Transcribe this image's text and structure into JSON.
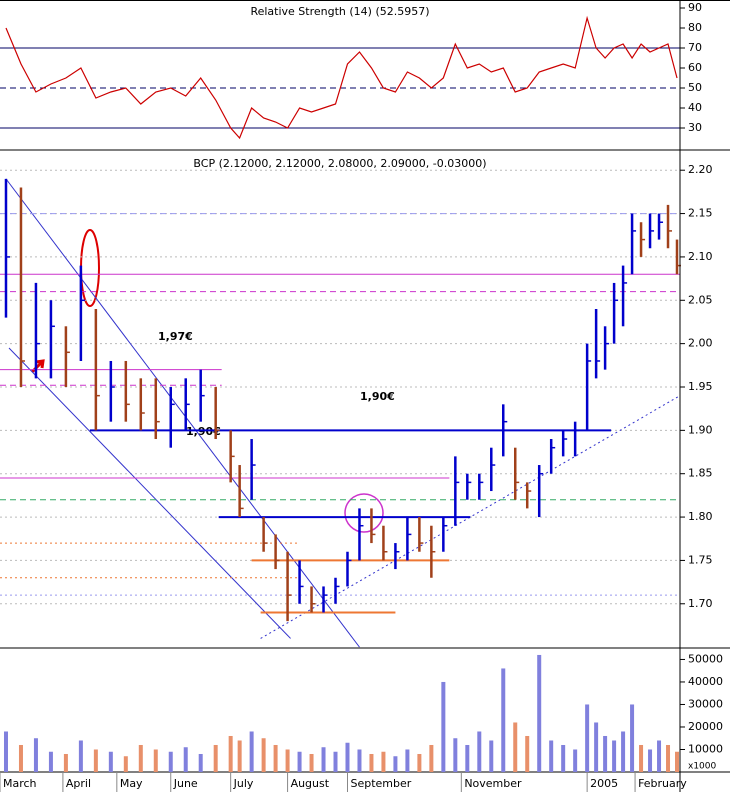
{
  "chart_data": [
    {
      "type": "line",
      "title": "Relative Strength (14) (52.5957)",
      "color": "#cc0000",
      "xlim": [
        0,
        227
      ],
      "ylim": [
        19,
        94
      ],
      "yticks": [
        30,
        40,
        50,
        60,
        70,
        80,
        90
      ],
      "reference_lines": [
        {
          "value": 70,
          "style": "solid"
        },
        {
          "value": 50,
          "style": "dashed"
        },
        {
          "value": 30,
          "style": "solid"
        }
      ],
      "x": [
        2,
        7,
        12,
        17,
        22,
        27,
        32,
        37,
        42,
        47,
        52,
        57,
        62,
        67,
        72,
        77,
        80,
        84,
        88,
        92,
        96,
        100,
        104,
        108,
        112,
        116,
        120,
        124,
        128,
        132,
        136,
        140,
        144,
        148,
        152,
        156,
        160,
        164,
        168,
        172,
        176,
        180,
        184,
        188,
        192,
        196,
        199,
        202,
        205,
        208,
        211,
        214,
        217,
        220,
        223,
        226
      ],
      "values": [
        80,
        62,
        48,
        52,
        55,
        60,
        45,
        48,
        50,
        42,
        48,
        50,
        46,
        55,
        44,
        30,
        25,
        40,
        35,
        33,
        30,
        40,
        38,
        40,
        42,
        62,
        68,
        60,
        50,
        48,
        58,
        55,
        50,
        55,
        72,
        60,
        62,
        58,
        60,
        48,
        50,
        58,
        60,
        62,
        60,
        85,
        70,
        65,
        70,
        72,
        65,
        72,
        68,
        70,
        72,
        55
      ]
    },
    {
      "type": "ohlc",
      "title": "BCP (2.12000, 2.12000, 2.08000, 2.09000, -0.03000)",
      "up_color": "#0000cc",
      "down_color": "#a0401a",
      "grid": true,
      "xlim": [
        0,
        227
      ],
      "ylim": [
        1.649,
        2.221
      ],
      "yticks": [
        {
          "value": 1.7,
          "label": "1.70"
        },
        1.75,
        {
          "value": 1.8,
          "label": "1.80"
        },
        1.85,
        {
          "value": 1.9,
          "label": "1.90"
        },
        1.95,
        {
          "value": 2.0,
          "label": "2.00"
        },
        2.05,
        {
          "value": 2.1,
          "label": "2.10"
        },
        2.15,
        {
          "value": 2.2,
          "label": "2.20"
        }
      ],
      "x": [
        2,
        7,
        12,
        17,
        22,
        27,
        32,
        37,
        42,
        47,
        52,
        57,
        62,
        67,
        72,
        77,
        80,
        84,
        88,
        92,
        96,
        100,
        104,
        108,
        112,
        116,
        120,
        124,
        128,
        132,
        136,
        140,
        144,
        148,
        152,
        156,
        160,
        164,
        168,
        172,
        176,
        180,
        184,
        188,
        192,
        196,
        199,
        202,
        205,
        208,
        211,
        214,
        217,
        220,
        223,
        226
      ],
      "high": [
        2.19,
        2.18,
        2.07,
        2.05,
        2.02,
        2.09,
        2.04,
        1.98,
        1.98,
        1.96,
        1.96,
        1.95,
        1.96,
        1.97,
        1.95,
        1.9,
        1.86,
        1.89,
        1.8,
        1.78,
        1.76,
        1.75,
        1.72,
        1.72,
        1.73,
        1.76,
        1.81,
        1.81,
        1.79,
        1.77,
        1.8,
        1.8,
        1.79,
        1.8,
        1.87,
        1.85,
        1.85,
        1.88,
        1.93,
        1.88,
        1.84,
        1.86,
        1.89,
        1.9,
        1.91,
        2.0,
        2.04,
        2.02,
        2.07,
        2.09,
        2.15,
        2.14,
        2.15,
        2.15,
        2.16,
        2.12
      ],
      "low": [
        2.03,
        1.95,
        1.96,
        1.96,
        1.95,
        1.98,
        1.9,
        1.91,
        1.91,
        1.9,
        1.89,
        1.88,
        1.9,
        1.91,
        1.89,
        1.84,
        1.8,
        1.82,
        1.76,
        1.74,
        1.68,
        1.7,
        1.69,
        1.69,
        1.7,
        1.72,
        1.75,
        1.77,
        1.75,
        1.74,
        1.75,
        1.76,
        1.73,
        1.76,
        1.79,
        1.82,
        1.82,
        1.83,
        1.87,
        1.82,
        1.81,
        1.8,
        1.85,
        1.87,
        1.87,
        1.9,
        1.96,
        1.97,
        2.0,
        2.02,
        2.08,
        2.1,
        2.11,
        2.12,
        2.11,
        2.08
      ],
      "close": [
        2.1,
        1.98,
        2.0,
        2.02,
        1.99,
        2.05,
        1.94,
        1.95,
        1.93,
        1.92,
        1.91,
        1.93,
        1.93,
        1.94,
        1.9,
        1.87,
        1.81,
        1.86,
        1.77,
        1.75,
        1.71,
        1.72,
        1.7,
        1.71,
        1.72,
        1.75,
        1.79,
        1.78,
        1.76,
        1.76,
        1.78,
        1.77,
        1.76,
        1.79,
        1.84,
        1.84,
        1.84,
        1.86,
        1.91,
        1.84,
        1.83,
        1.85,
        1.88,
        1.89,
        1.9,
        1.98,
        1.98,
        2.0,
        2.05,
        2.07,
        2.13,
        2.12,
        2.13,
        2.14,
        2.13,
        2.09
      ],
      "lines": [
        {
          "x": [
            2,
            120
          ],
          "y": [
            2.19,
            1.65
          ],
          "color": "#3333cc",
          "style": "solid",
          "width": 1
        },
        {
          "x": [
            3,
            97
          ],
          "y": [
            1.995,
            1.66
          ],
          "color": "#3333cc",
          "style": "solid",
          "width": 1
        },
        {
          "x": [
            87,
            227
          ],
          "y": [
            1.66,
            1.94
          ],
          "color": "#3333cc",
          "style": "dotted",
          "width": 1
        },
        {
          "x": [
            0,
            227
          ],
          "y": [
            2.08,
            2.08
          ],
          "color": "#cc33cc",
          "style": "solid",
          "width": 1
        },
        {
          "x": [
            0,
            227
          ],
          "y": [
            2.06,
            2.06
          ],
          "color": "#cc33cc",
          "style": "dashed",
          "width": 1
        },
        {
          "x": [
            0,
            74
          ],
          "y": [
            1.97,
            1.97
          ],
          "color": "#cc33cc",
          "style": "solid",
          "width": 1
        },
        {
          "x": [
            0,
            74
          ],
          "y": [
            1.952,
            1.952
          ],
          "color": "#cc33cc",
          "style": "dashed",
          "width": 1
        },
        {
          "x": [
            0,
            150
          ],
          "y": [
            1.845,
            1.845
          ],
          "color": "#cc33cc",
          "style": "solid",
          "width": 1
        },
        {
          "x": [
            0,
            227
          ],
          "y": [
            2.15,
            2.15
          ],
          "color": "#9999ee",
          "style": "dashed",
          "width": 1
        },
        {
          "x": [
            0,
            227
          ],
          "y": [
            1.71,
            1.71
          ],
          "color": "#9999ee",
          "style": "dotted",
          "width": 1
        },
        {
          "x": [
            0,
            227
          ],
          "y": [
            1.82,
            1.82
          ],
          "color": "#33aa66",
          "style": "dashed",
          "width": 1
        },
        {
          "x": [
            0,
            100
          ],
          "y": [
            1.77,
            1.77
          ],
          "color": "#ee7733",
          "style": "dotted",
          "width": 1
        },
        {
          "x": [
            0,
            100
          ],
          "y": [
            1.73,
            1.73
          ],
          "color": "#ee7733",
          "style": "dotted",
          "width": 1
        },
        {
          "x": [
            30,
            204
          ],
          "y": [
            1.9,
            1.9
          ],
          "color": "#0000cc",
          "style": "solid",
          "width": 2
        },
        {
          "x": [
            73,
            157
          ],
          "y": [
            1.8,
            1.8
          ],
          "color": "#0000cc",
          "style": "solid",
          "width": 2
        },
        {
          "x": [
            84,
            150
          ],
          "y": [
            1.75,
            1.75
          ],
          "color": "#ee7733",
          "style": "solid",
          "width": 2
        },
        {
          "x": [
            87,
            132
          ],
          "y": [
            1.69,
            1.69
          ],
          "color": "#ee7733",
          "style": "solid",
          "width": 2
        }
      ],
      "annotations": [
        {
          "text": "1,97€",
          "color": "#cc33cc"
        },
        {
          "text": "1,90€",
          "color": "#0000cc"
        },
        {
          "text": "1,90€",
          "color": "#0000cc"
        }
      ]
    },
    {
      "type": "bar",
      "up_color": "#8080dd",
      "down_color": "#e8906a",
      "unit_label": "x1000",
      "xlim": [
        0,
        227
      ],
      "ylim": [
        0,
        54200
      ],
      "yticks": [
        10000,
        20000,
        30000,
        40000,
        50000
      ],
      "xticks": [
        {
          "value": 0,
          "label": "March"
        },
        {
          "value": 21,
          "label": "April"
        },
        {
          "value": 39,
          "label": "May"
        },
        {
          "value": 57,
          "label": "June"
        },
        {
          "value": 77,
          "label": "July"
        },
        {
          "value": 96,
          "label": "August"
        },
        {
          "value": 116,
          "label": "September"
        },
        {
          "value": 154,
          "label": "November"
        },
        {
          "value": 196,
          "label": "2005"
        },
        {
          "value": 212,
          "label": "February"
        }
      ],
      "x": [
        2,
        7,
        12,
        17,
        22,
        27,
        32,
        37,
        42,
        47,
        52,
        57,
        62,
        67,
        72,
        77,
        80,
        84,
        88,
        92,
        96,
        100,
        104,
        108,
        112,
        116,
        120,
        124,
        128,
        132,
        136,
        140,
        144,
        148,
        152,
        156,
        160,
        164,
        168,
        172,
        176,
        180,
        184,
        188,
        192,
        196,
        199,
        202,
        205,
        208,
        211,
        214,
        217,
        220,
        223,
        226
      ],
      "values": [
        18000,
        12000,
        15000,
        9000,
        8000,
        14000,
        10000,
        9000,
        7000,
        12000,
        10000,
        9000,
        11000,
        8000,
        12000,
        16000,
        14000,
        18000,
        15000,
        12000,
        10000,
        9000,
        8000,
        11000,
        9000,
        13000,
        10000,
        8000,
        9000,
        7000,
        10000,
        8000,
        12000,
        40000,
        15000,
        12000,
        18000,
        14000,
        46000,
        22000,
        16000,
        52000,
        14000,
        12000,
        10000,
        30000,
        22000,
        16000,
        14000,
        18000,
        30000,
        12000,
        10000,
        14000,
        12000,
        9000
      ]
    }
  ]
}
